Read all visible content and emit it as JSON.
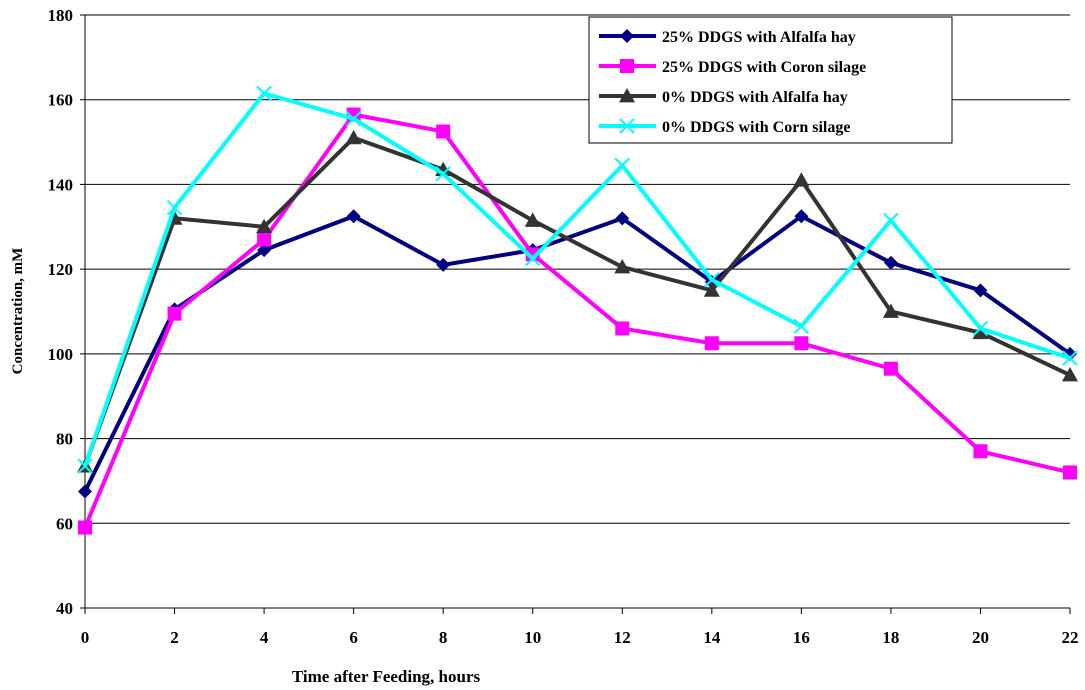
{
  "chart_data": {
    "type": "line",
    "xlabel": "Time after Feeding, hours",
    "ylabel": "Concentration, mM",
    "xlim": [
      0,
      22
    ],
    "ylim": [
      40,
      180
    ],
    "x_ticks": [
      0,
      2,
      4,
      6,
      8,
      10,
      12,
      14,
      16,
      18,
      20,
      22
    ],
    "y_ticks": [
      40,
      60,
      80,
      100,
      120,
      140,
      160,
      180
    ],
    "grid": "horizontal",
    "legend_position": "top-right",
    "x": [
      0,
      2,
      4,
      6,
      8,
      10,
      12,
      14,
      16,
      18,
      20,
      22
    ],
    "series": [
      {
        "name": "25% DDGS with Alfalfa hay",
        "color": "#000080",
        "marker": "diamond",
        "values": [
          67.5,
          110.5,
          124.5,
          132.5,
          121,
          124.5,
          132,
          117,
          132.5,
          121.5,
          115,
          100
        ]
      },
      {
        "name": "25% DDGS with Coron silage",
        "color": "#FF00FF",
        "marker": "square",
        "values": [
          59,
          109.5,
          127,
          156.5,
          152.5,
          123.5,
          106,
          102.5,
          102.5,
          96.5,
          77,
          72
        ]
      },
      {
        "name": "0% DDGS with Alfalfa hay",
        "color": "#333333",
        "marker": "triangle",
        "values": [
          73.5,
          132,
          130,
          151,
          143.5,
          131.5,
          120.5,
          115,
          141,
          110,
          105,
          95
        ]
      },
      {
        "name": "0% DDGS with Corn silage",
        "color": "#00FFFF",
        "marker": "x",
        "values": [
          73.5,
          134.5,
          161.5,
          155.5,
          142.5,
          122.5,
          144.5,
          117.5,
          106.5,
          131.5,
          106,
          99
        ]
      }
    ]
  }
}
